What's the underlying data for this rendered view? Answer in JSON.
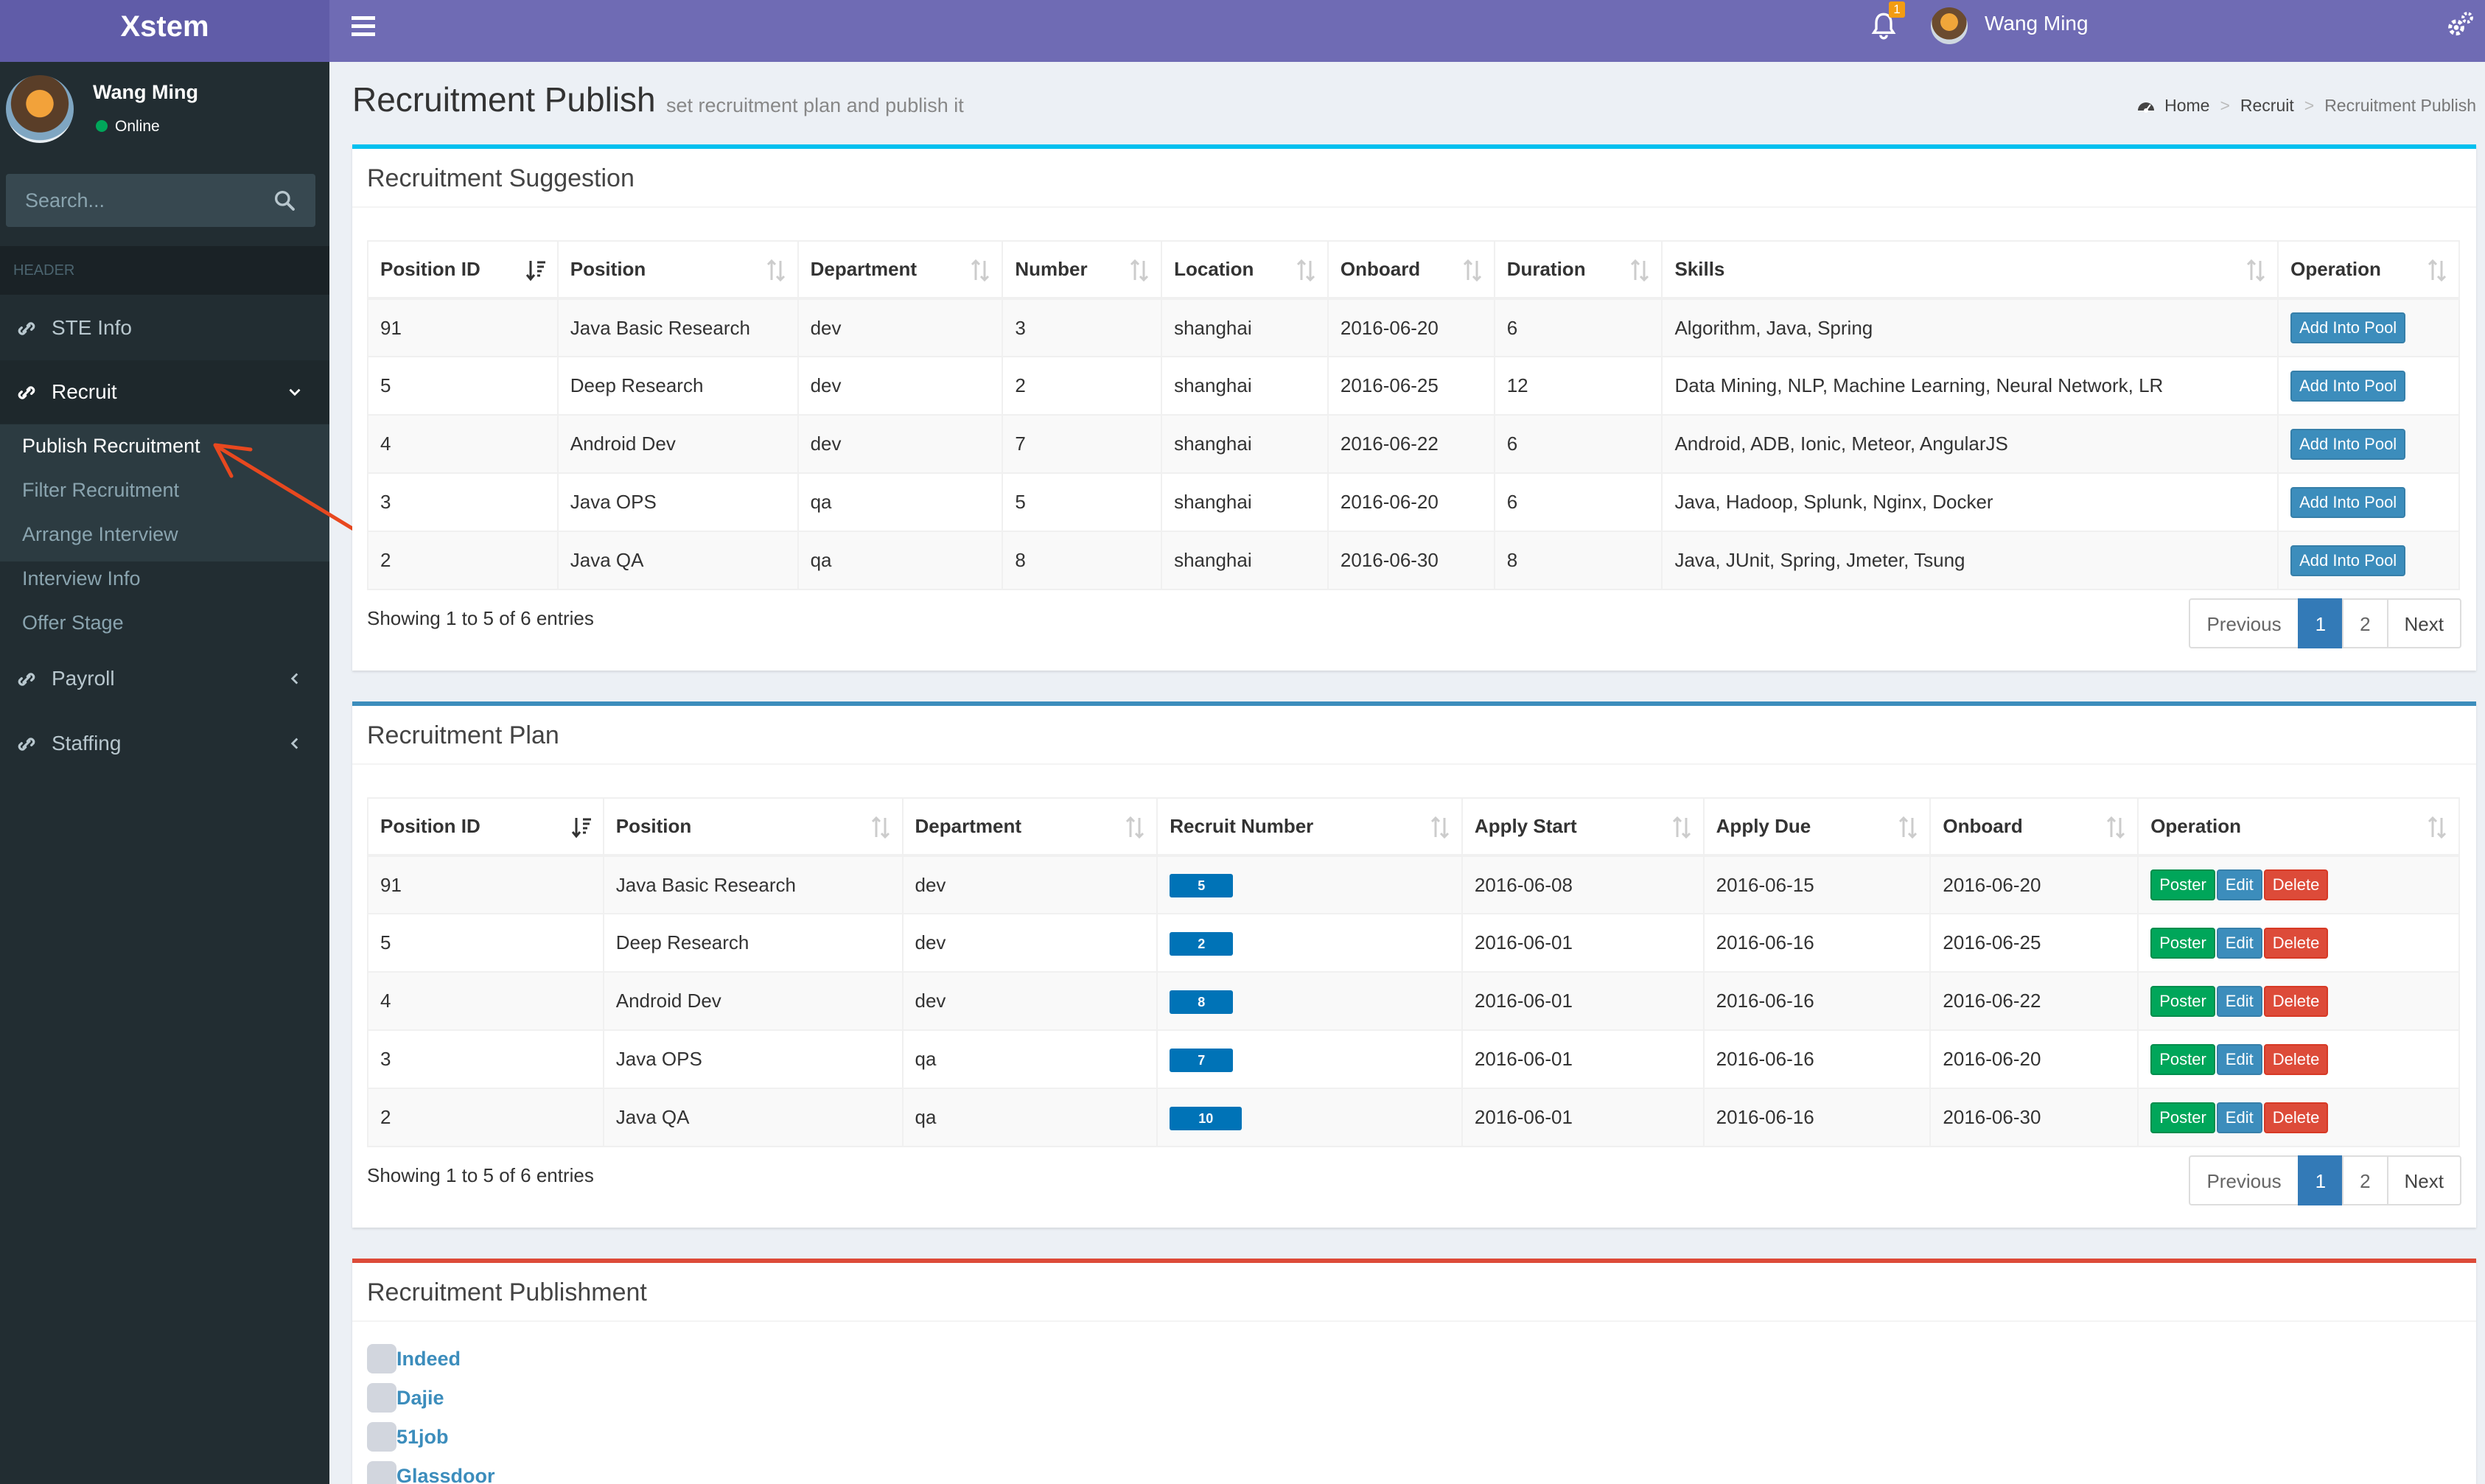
{
  "app": {
    "logo": "Xstem"
  },
  "topbar": {
    "notification_count": "1",
    "user_name": "Wang Ming"
  },
  "sidebar": {
    "user_name": "Wang Ming",
    "status": "Online",
    "search_placeholder": "Search...",
    "header": "HEADER",
    "items": [
      {
        "label": "STE Info"
      },
      {
        "label": "Recruit"
      },
      {
        "label": "Payroll"
      },
      {
        "label": "Staffing"
      }
    ],
    "recruit_sub": [
      {
        "label": "Publish Recruitment"
      },
      {
        "label": "Filter Recruitment"
      },
      {
        "label": "Arrange Interview"
      },
      {
        "label": "Interview Info"
      },
      {
        "label": "Offer Stage"
      }
    ]
  },
  "page": {
    "title": "Recruitment Publish",
    "subtitle": "set recruitment plan and publish it"
  },
  "breadcrumb": [
    "Home",
    "Recruit",
    "Recruitment Publish"
  ],
  "suggestion": {
    "title": "Recruitment Suggestion",
    "columns": [
      "Position ID",
      "Position",
      "Department",
      "Number",
      "Location",
      "Onboard",
      "Duration",
      "Skills",
      "Operation"
    ],
    "rows": [
      [
        "91",
        "Java Basic Research",
        "dev",
        "3",
        "shanghai",
        "2016-06-20",
        "6",
        "Algorithm, Java, Spring"
      ],
      [
        "5",
        "Deep Research",
        "dev",
        "2",
        "shanghai",
        "2016-06-25",
        "12",
        "Data Mining, NLP, Machine Learning, Neural Network, LR"
      ],
      [
        "4",
        "Android Dev",
        "dev",
        "7",
        "shanghai",
        "2016-06-22",
        "6",
        "Android, ADB, Ionic, Meteor, AngularJS"
      ],
      [
        "3",
        "Java OPS",
        "qa",
        "5",
        "shanghai",
        "2016-06-20",
        "6",
        "Java, Hadoop, Splunk, Nginx, Docker"
      ],
      [
        "2",
        "Java QA",
        "qa",
        "8",
        "shanghai",
        "2016-06-30",
        "8",
        "Java, JUnit, Spring, Jmeter, Tsung"
      ]
    ],
    "action_label": "Add Into Pool",
    "info": "Showing 1 to 5 of 6 entries",
    "pager": [
      "Previous",
      "1",
      "2",
      "Next"
    ]
  },
  "plan": {
    "title": "Recruitment Plan",
    "columns": [
      "Position ID",
      "Position",
      "Department",
      "Recruit Number",
      "Apply Start",
      "Apply Due",
      "Onboard",
      "Operation"
    ],
    "rows": [
      [
        "91",
        "Java Basic Research",
        "dev",
        "5",
        "2016-06-08",
        "2016-06-15",
        "2016-06-20"
      ],
      [
        "5",
        "Deep Research",
        "dev",
        "2",
        "2016-06-01",
        "2016-06-16",
        "2016-06-25"
      ],
      [
        "4",
        "Android Dev",
        "dev",
        "8",
        "2016-06-01",
        "2016-06-16",
        "2016-06-22"
      ],
      [
        "3",
        "Java OPS",
        "qa",
        "7",
        "2016-06-01",
        "2016-06-16",
        "2016-06-20"
      ],
      [
        "2",
        "Java QA",
        "qa",
        "10",
        "2016-06-01",
        "2016-06-16",
        "2016-06-30"
      ]
    ],
    "action_labels": [
      "Poster",
      "Edit",
      "Delete"
    ],
    "info": "Showing 1 to 5 of 6 entries",
    "pager": [
      "Previous",
      "1",
      "2",
      "Next"
    ]
  },
  "publishment": {
    "title": "Recruitment Publishment",
    "sites": [
      "Indeed",
      "Dajie",
      "51job",
      "Glassdoor"
    ]
  },
  "colors": {
    "header": "#6f6bb4",
    "logo_bg": "#605ca8",
    "sidebar": "#222d32",
    "info": "#00c0ef",
    "primary": "#3c8dbc",
    "success": "#00a65a",
    "danger": "#dd4b39",
    "badge": "#0073b7"
  }
}
